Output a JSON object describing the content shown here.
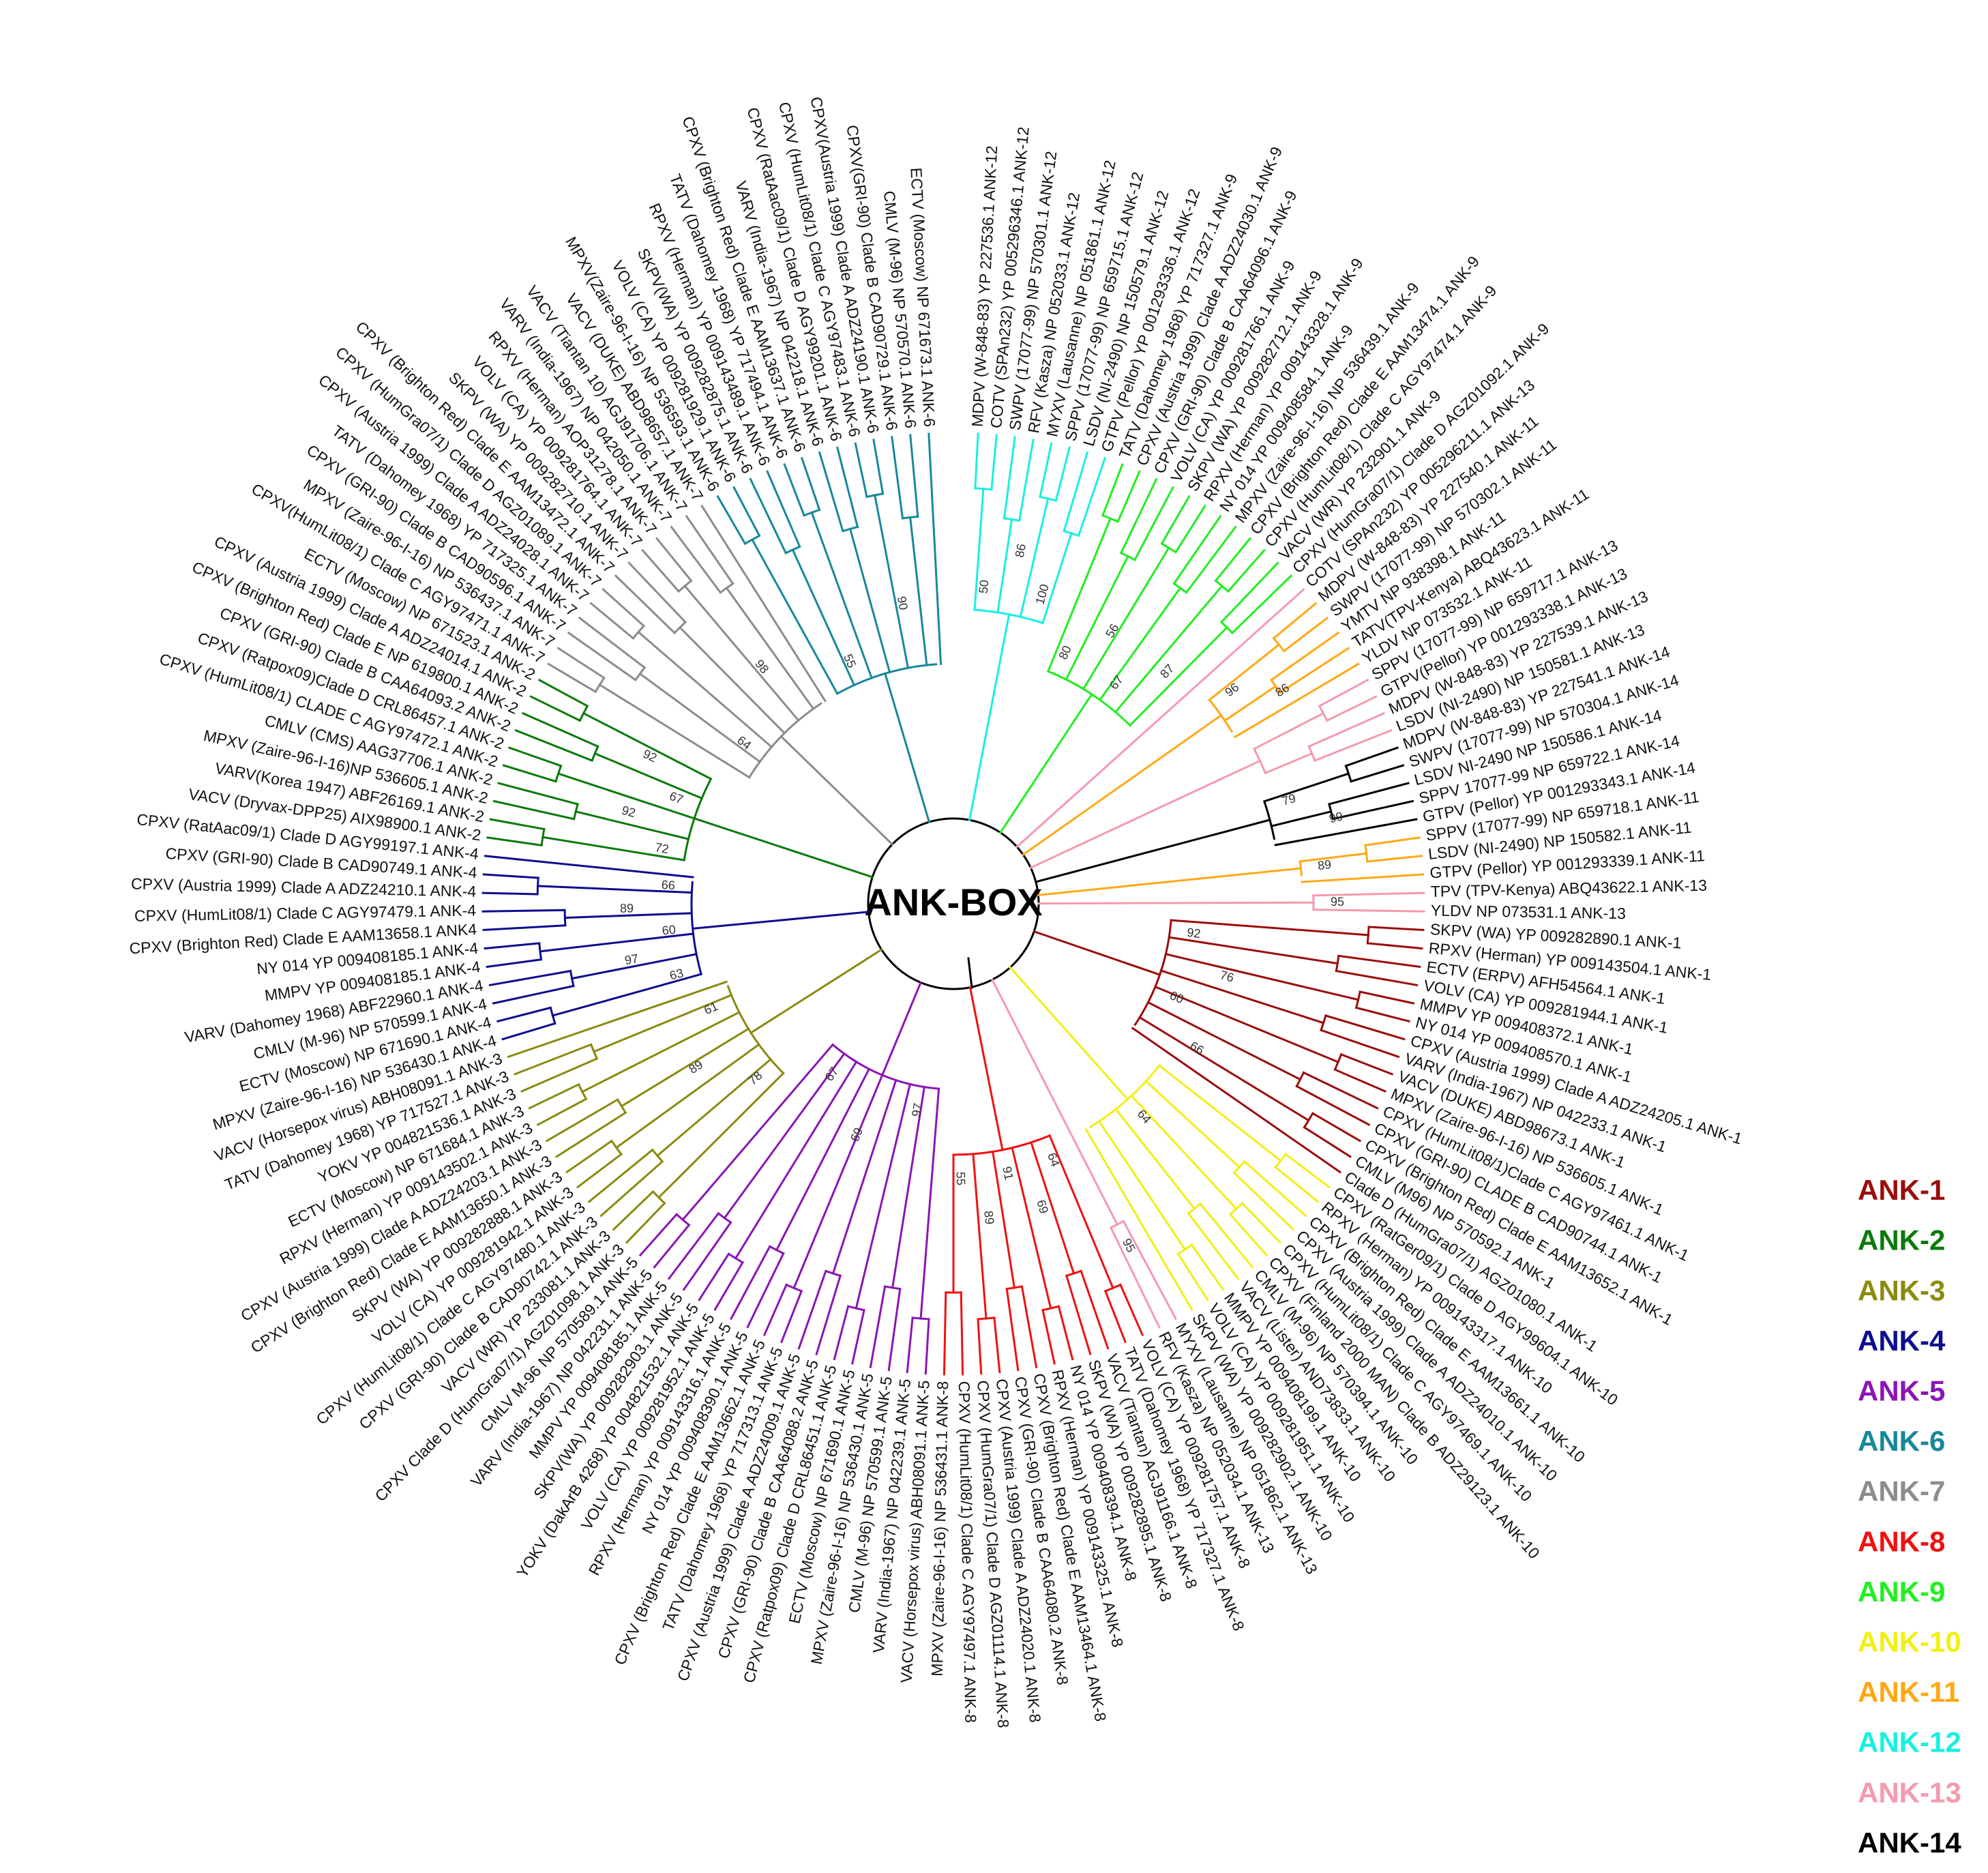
{
  "center_label": "ANK-BOX",
  "legend": [
    {
      "label": "ANK-1",
      "color": "#9b0d0d"
    },
    {
      "label": "ANK-2",
      "color": "#0b7a0b"
    },
    {
      "label": "ANK-3",
      "color": "#8a8a0f"
    },
    {
      "label": "ANK-4",
      "color": "#0d0d8f"
    },
    {
      "label": "ANK-5",
      "color": "#8b15b5"
    },
    {
      "label": "ANK-6",
      "color": "#17889a"
    },
    {
      "label": "ANK-7",
      "color": "#8c8c8c"
    },
    {
      "label": "ANK-8",
      "color": "#ee1111"
    },
    {
      "label": "ANK-9",
      "color": "#22ee22"
    },
    {
      "label": "ANK-10",
      "color": "#f2ef15"
    },
    {
      "label": "ANK-11",
      "color": "#ffa814"
    },
    {
      "label": "ANK-12",
      "color": "#19f0e0"
    },
    {
      "label": "ANK-13",
      "color": "#f59aae"
    },
    {
      "label": "ANK-14",
      "color": "#000000"
    }
  ],
  "groups": [
    {
      "legend_index": 11,
      "bootstrap": [
        "50",
        "86",
        "100"
      ],
      "leaves": [
        "MDPV (W-848-83) YP 227536.1 ANK-12",
        "COTV (SPAn232) YP 005296346.1 ANK-12",
        "SWPV (17077-99) NP 570301.1 ANK-12",
        "RFV (Kasza) NP 052033.1 ANK-12",
        "MYXV (Lausanne) NP 051861.1 ANK-12",
        "SPPV (17077-99) NP 659715.1 ANK-12",
        "LSDV (NI-2490) NP 150579.1 ANK-12",
        "GTPV (Pellor) YP 001293336.1 ANK-12"
      ]
    },
    {
      "legend_index": 8,
      "bootstrap": [
        "80",
        "56",
        "67",
        "87"
      ],
      "leaves": [
        "TATV (Dahomey 1968) YP 717327.1 ANK-9",
        "CPXV (Austria 1999) Clade A ADZ24030.1 ANK-9",
        "CPXV (GRI-90) Clade B CAA64096.1 ANK-9",
        "VOLV (CA) YP 009281766.1 ANK-9",
        "SKPV (WA) YP 009282712.1 ANK-9",
        "RPXV (Herman) YP 009143328.1 ANK-9",
        "NY 014 YP 009408584.1 ANK-9",
        "MPXV (Zaire-96-I-16) NP 536439.1 ANK-9",
        "CPXV (Brighton Red) Clade E AAM13474.1 ANK-9",
        "CPXV (HumLit08/1) Clade C AGY97474.1 ANK-9",
        "VACV (WR) YP 232901.1 ANK-9",
        "CPXV (HumGra07/1) Clade D AGZ01092.1 ANK-9"
      ]
    },
    {
      "legend_index": 12,
      "bootstrap": [],
      "leaves": [
        "COTV (SPAn232) YP 005296211.1 ANK-13"
      ]
    },
    {
      "legend_index": 10,
      "bootstrap": [
        "96",
        "86"
      ],
      "leaves": [
        "MDPV (W-848-83) YP 227540.1 ANK-11",
        "SWPV (17077-99) NP 570302.1 ANK-11",
        "YMTV NP 938398.1 ANK-11",
        "TATV(TPV-Kenya) ABQ43623.1 ANK-11",
        "YLDV NP 073532.1 ANK-11"
      ]
    },
    {
      "legend_index": 12,
      "bootstrap": [],
      "leaves": [
        "SPPV (17077-99) NP 659717.1 ANK-13",
        "GTPV(Pellor) YP 001293338.1 ANK-13",
        "MDPV (W-848-83) YP 227539.1 ANK-13",
        "LSDV (NI-2490) NP 150581.1 ANK-13"
      ]
    },
    {
      "legend_index": 13,
      "bootstrap": [
        "79",
        "99"
      ],
      "leaves": [
        "MDPV (W-848-83) YP 227541.1 ANK-14",
        "SWPV (17077-99) NP 570304.1 ANK-14",
        "LSDV NI-2490 NP 150586.1 ANK-14",
        "SPPV 17077-99 NP 659722.1 ANK-14",
        "GTPV (Pellor) YP 001293343.1 ANK-14"
      ]
    },
    {
      "legend_index": 10,
      "bootstrap": [
        "89"
      ],
      "leaves": [
        "SPPV (17077-99) NP 659718.1 ANK-11",
        "LSDV (NI-2490) NP 150582.1 ANK-11",
        "GTPV (Pellor) YP 001293339.1 ANK-11"
      ]
    },
    {
      "legend_index": 12,
      "bootstrap": [
        "95"
      ],
      "leaves": [
        "TPV (TPV-Kenya) ABQ43622.1 ANK-13",
        "YLDV NP 073531.1 ANK-13"
      ]
    },
    {
      "legend_index": 0,
      "bootstrap": [
        "92",
        "76",
        "60",
        "66"
      ],
      "leaves": [
        "SKPV (WA) YP 009282890.1 ANK-1",
        "RPXV (Herman) YP 009143504.1 ANK-1",
        "ECTV (ERPV) AFH54564.1 ANK-1",
        "VOLV (CA) YP 009281944.1 ANK-1",
        "MMPV YP 009408372.1 ANK-1",
        "NY 014 YP 009408570.1 ANK-1",
        "CPXV (Austria 1999) Clade A ADZ24205.1 ANK-1",
        "VARV (India-1967) NP 042233.1 ANK-1",
        "VACV (DUKE) ABD98673.1 ANK-1",
        "MPXV (Zaire-96-I-16) NP 536605.1 ANK-1",
        "CPXV (HumLit08/1)Clade C AGY97461.1 ANK-1",
        "CPXV (GRI-90) CLADE B CAD90744.1 ANK-1",
        "CPXV (Brighton Red) Clade E AAM13652.1 ANK-1",
        "CMLV (M96) NP 570592.1 ANK-1",
        "Clade D (HumGra07/1) AGZ01080.1 ANK-1"
      ]
    },
    {
      "legend_index": 9,
      "bootstrap": [
        "64"
      ],
      "leaves": [
        "CPXV (RatGer09/1) Clade D AGY99604.1 ANK-10",
        "RPXV (Herman) YP 009143317.1 ANK-10",
        "CPXV (Brighton Red) Clade E AAM13661.1 ANK-10",
        "CPXV (Austria 1999) Clade A ADZ24010.1 ANK-10",
        "CPXV (HumLit08/1) Clade C AGY97469.1 ANK-10",
        "CPXV (Finland 2000 MAN) Clade B ADZ29123.1 ANK-10",
        "CMLV (M-96) NP 570394.1 ANK-10",
        "VACV (Lister) AND73833.1 ANK-10",
        "MMPV YP 009408199.1 ANK-10",
        "VOLV (CA) YP 009281951.1 ANK-10",
        "SKPV (WA) YP 009282902.1 ANK-10"
      ]
    },
    {
      "legend_index": 12,
      "bootstrap": [
        "95"
      ],
      "leaves": [
        "MYXV (Lausanne) NP 051862.1 ANK-13",
        "RFV (Kasza) NP 052034.1 ANK-13"
      ]
    },
    {
      "legend_index": 7,
      "bootstrap": [
        "64",
        "69",
        "91",
        "89",
        "55"
      ],
      "leaves": [
        "VOLV (CA) YP 009281757.1 ANK-8",
        "TATV (Dahomey 1968) YP 717327.1 ANK-8",
        "VACV (Tiantan) AGJ91166.1 ANK-8",
        "SKPV (WA) YP 009282895.1 ANK-8",
        "NY 014 YP 009408394.1 ANK-8",
        "RPXV (Herman) YP 009143325.1 ANK-8",
        "CPXV (Brighton Red) Clade E AAM13464.1 ANK-8",
        "CPXV (GRI-90) Clade B CAA64080.2 ANK-8",
        "CPXV (Austria 1999) Clade A ADZ24020.1 ANK-8",
        "CPXV (HumGra07/1) Clade D AGZ01114.1 ANK-8",
        "CPXV (HumLit08/1) Clade C AGY97497.1 ANK-8",
        "MPXV (Zaire-96-I-16) NP 536431.1 ANK-8"
      ]
    },
    {
      "legend_index": 4,
      "bootstrap": [
        "97",
        "69",
        "67"
      ],
      "leaves": [
        "VACV (Horsepox virus) ABH08091.1 ANK-5",
        "VARV (India-1967) NP 042239.1 ANK-5",
        "CMLV (M-96) NP 570599.1 ANK-5",
        "MPXV (Zaire-96-I-16) NP 536430.1 ANK-5",
        "ECTV (Moscow) NP 671690.1 ANK-5",
        "CPXV (Ratpox09) Clade D CRL86451.1 ANK-5",
        "CPXV (GRI-90) Clade B CAA64088.2 ANK-5",
        "CPXV (Austria 1999) Clade A ADZ24009.1 ANK-5",
        "TATV (Dahomey 1968) YP 717313.1 ANK-5",
        "CPXV (Brighton Red) Clade E AAM13662.1 ANK-5",
        "NY 014 YP 009408390.1 ANK-5",
        "RPXV (Herman) YP 009143316.1 ANK-5",
        "VOLV (CA) YP 009281952.1 ANK-5",
        "YOKV (DakArB 4268) YP 004821532.1 ANK-5",
        "SKPV(WA) YP 009282903.1 ANK-5",
        "MMPV YP 009408185.1 ANK-5",
        "VARV (India-1967) NP 042231.1 ANK-5",
        "CMLV M-96 NP 570589.1 ANK-5"
      ]
    },
    {
      "legend_index": 2,
      "bootstrap": [
        "78",
        "89",
        "61"
      ],
      "leaves": [
        "CPXV Clade D (HumGra07/1) AGZ01098.1 ANK-3",
        "VACV (WR) YP 233081.1 ANK-3",
        "CPXV (GRI-90) Clade B CAD90742.1 ANK-3",
        "CPXV (HumLit08/1) Clade C AGY97480.1 ANK-3",
        "VOLV (CA) YP 009281942.1 ANK-3",
        "SKPV (WA) YP 009282888.1 ANK-3",
        "CPXV (Brighton Red) Clade E AAM13650.1 ANK-3",
        "CPXV (Austria 1999) Clade A ADZ24203.1 ANK-3",
        "RPXV (Herman) YP 009143502.1 ANK-3",
        "ECTV (Moscow) NP 671684.1 ANK-3",
        "YOKV YP 004821536.1 ANK-3",
        "TATV (Dahomey 1968) YP 717527.1 ANK-3",
        "VACV (Horsepox virus) ABH08091.1 ANK-3"
      ]
    },
    {
      "legend_index": 3,
      "bootstrap": [
        "63",
        "97",
        "60",
        "89",
        "66"
      ],
      "leaves": [
        "MPXV (Zaire-96-I-16) NP 536430.1 ANK-4",
        "ECTV (Moscow) NP 671690.1 ANK-4",
        "CMLV (M-96) NP 570599.1 ANK-4",
        "VARV (Dahomey 1968) ABF22960.1 ANK-4",
        "MMPV YP 009408185.1 ANK-4",
        "NY 014 YP 009408185.1 ANK-4",
        "CPXV (Brighton Red) Clade E AAM13658.1 ANK4",
        "CPXV (HumLit08/1) Clade C AGY97479.1 ANK-4",
        "CPXV (Austria 1999) Clade A ADZ24210.1 ANK-4",
        "CPXV (GRI-90) Clade B CAD90749.1 ANK-4",
        "CPXV (RatAac09/1) Clade D AGY99197.1 ANK-4"
      ]
    },
    {
      "legend_index": 1,
      "bootstrap": [
        "72",
        "92",
        "67",
        "92"
      ],
      "leaves": [
        "VACV (Dryvax-DPP25) AIX98900.1 ANK-2",
        "VARV(Korea 1947) ABF26169.1 ANK-2",
        "MPXV (Zaire-96-I-16)NP 536605.1 ANK-2",
        "CMLV (CMS) AAG37706.1 ANK-2",
        "CPXV (HumLit08/1) CLADE C AGY97472.1 ANK-2",
        "CPXV (Ratpox09)Clade D CRL86457.1 ANK-2",
        "CPXV (GRI-90) Clade B CAA64093.2 ANK-2",
        "CPXV (Brighton Red) Clade E NP 619800.1 ANK-2",
        "CPXV (Austria 1999) Clade A ADZ24014.1 ANK-2",
        "ECTV (Moscow) NP 671523.1 ANK-2"
      ]
    },
    {
      "legend_index": 6,
      "bootstrap": [
        "64",
        "98"
      ],
      "leaves": [
        "CPXV(HumLit08/1) Clade C AGY97471.1 ANK-7",
        "MPXV (Zaire-96-I-16) NP 536437.1 ANK-7",
        "CPXV (GRI-90) Clade B CAD90596.1 ANK-7",
        "TATV (Dahomey 1968) YP 717325.1 ANK-7",
        "CPXV (Austria 1999) Clade A ADZ24028.1 ANK-7",
        "CPXV (HumGra07/1) Clade D AGZ01089.1 ANK-7",
        "CPXV (Brighton Red) Clade E AAM13472.1 ANK-7",
        "SKPV (WA) YP 009282710.1 ANK-7",
        "VOLV (CA) YP 009281764.1 ANK-7",
        "RPXV (Herman) AOP31278.1 ANK-7",
        "VARV (India-1967) NP 042050.1 ANK-7",
        "VACV (Tiantan 10) AGJ91706.1 ANK-7",
        "VACV (DUKE) ABD98657.1 ANK-7"
      ]
    },
    {
      "legend_index": 5,
      "bootstrap": [
        "55",
        "90"
      ],
      "leaves": [
        "MPXV(Zaire-96-I-16) NP 536593.1 ANK-6",
        "VOLV (CA) YP 009281929.1 ANK-6",
        "SKPV(WA) YP 009282875.1 ANK-6",
        "RPXV (Herman) YP 009143489.1 ANK-6",
        "TATV (Dahomey 1968) YP 717494.1 ANK-6",
        "CPXV (Brighton Red) Clade E AAM13637.1 ANK-6",
        "VARV (India-1967) NP 042218.1 ANK-6",
        "CPXV (RatAac09/1) Clade D AGY99201.1 ANK-6",
        "CPXV (HumLit08/1) Clade C AGY97483.1 ANK-6",
        "CPXV(Austria 1999) Clade A ADZ24190.1 ANK-6",
        "CPXV(GRI-90) Clade B CAD90729.1 ANK-6",
        "CMLV (M-96) NP 570570.1 ANK-6",
        "ECTV (Moscow) NP 671673.1 ANK-6"
      ]
    }
  ]
}
